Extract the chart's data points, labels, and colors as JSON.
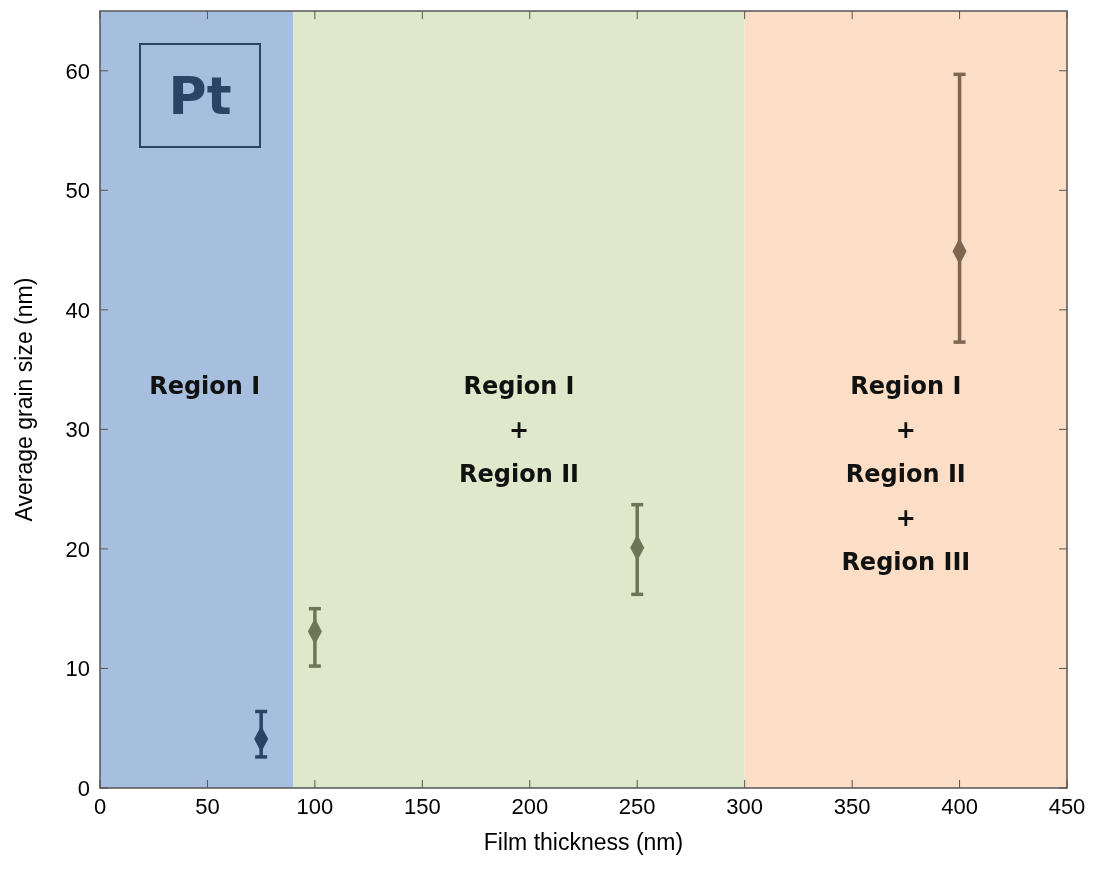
{
  "chart_data": {
    "type": "scatter",
    "xlabel": "Film thickness (nm)",
    "ylabel": "Average grain size (nm)",
    "x": [
      75,
      100,
      250,
      400
    ],
    "values": [
      4.1,
      13.1,
      20.1,
      44.9
    ],
    "errors": [
      [
        2.6,
        6.4
      ],
      [
        10.2,
        15.0
      ],
      [
        16.2,
        23.7
      ],
      [
        37.3,
        59.7
      ]
    ],
    "colors": [
      "#2a4466",
      "#6b7755",
      "#6b7755",
      "#7d6550"
    ],
    "marker": "diamond",
    "xlim": [
      0,
      450
    ],
    "xticks": [
      0,
      50,
      100,
      150,
      200,
      250,
      300,
      350,
      400,
      450
    ],
    "ylim": [
      0,
      65
    ],
    "yticks": [
      0,
      10,
      20,
      30,
      40,
      50,
      60
    ],
    "bands": [
      {
        "axis": "x",
        "from": 0,
        "to": 90,
        "label": "Region I",
        "color": "#a7bfde"
      },
      {
        "axis": "x",
        "from": 90,
        "to": 300,
        "label": "Region I\n+\nRegion II",
        "color": "#e0e8cb"
      },
      {
        "axis": "x",
        "from": 300,
        "to": 450,
        "label": "Region I\n+\nRegion II\n+\nRegion III",
        "color": "#fbdec5"
      }
    ],
    "annotations": [
      "Pt"
    ]
  }
}
